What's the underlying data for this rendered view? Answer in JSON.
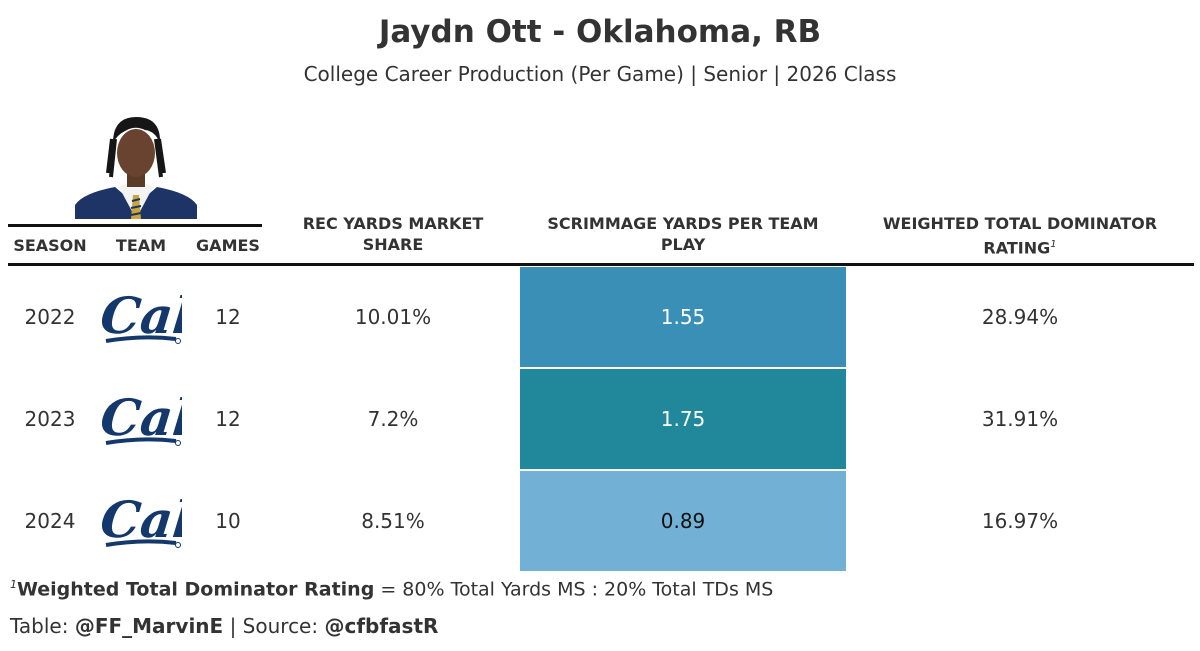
{
  "header": {
    "title": "Jaydn Ott - Oklahoma, RB",
    "subtitle": "College Career Production (Per Game) | Senior | 2026 Class"
  },
  "columns": {
    "season": "SEASON",
    "team": "TEAM",
    "games": "GAMES",
    "rec_yards_ms": "REC YARDS MARKET SHARE",
    "scrimmage_yards": "SCRIMMAGE YARDS PER TEAM PLAY",
    "wtdr": "WEIGHTED TOTAL DOMINATOR RATING",
    "wtdr_mark": "1"
  },
  "rows": [
    {
      "season": "2022",
      "team_logo": "Cal",
      "games": "12",
      "rec_yards_ms": "10.01%",
      "scrimmage": "1.55",
      "wtdr": "28.94%",
      "heat_color": "#3a8fb7",
      "text_color": "#ffffff"
    },
    {
      "season": "2023",
      "team_logo": "Cal",
      "games": "12",
      "rec_yards_ms": "7.2%",
      "scrimmage": "1.75",
      "wtdr": "31.91%",
      "heat_color": "#21889b",
      "text_color": "#ffffff"
    },
    {
      "season": "2024",
      "team_logo": "Cal",
      "games": "10",
      "rec_yards_ms": "8.51%",
      "scrimmage": "0.89",
      "wtdr": "16.97%",
      "heat_color": "#72b0d5",
      "text_color": "#111111"
    }
  ],
  "footnote": {
    "mark": "1",
    "term": "Weighted Total Dominator Rating",
    "definition": " = 80% Total Yards MS : 20% Total TDs MS"
  },
  "credits": {
    "table_label": "Table: ",
    "table_handle": "@FF_MarvinE",
    "separator": " | Source: ",
    "source_handle": "@cfbfastR"
  },
  "colors": {
    "logo_navy": "#14386b",
    "rule": "#111111"
  }
}
